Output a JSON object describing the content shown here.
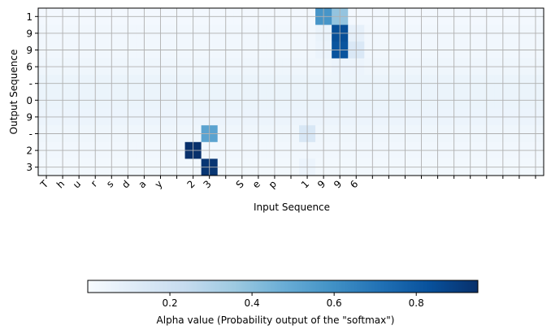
{
  "chart_data": {
    "type": "heatmap",
    "xlabel": "Input Sequence",
    "ylabel": "Output Sequence",
    "x_tick_labels": [
      "T",
      "h",
      "u",
      "r",
      "s",
      "d",
      "a",
      "y",
      "",
      "2",
      "3",
      "",
      "S",
      "e",
      "p",
      "",
      "1",
      "9",
      "9",
      "6",
      "",
      "",
      "",
      "",
      "",
      "",
      "",
      "",
      "",
      "",
      ""
    ],
    "y_tick_labels": [
      "1",
      "9",
      "9",
      "6",
      "-",
      "0",
      "9",
      "-",
      "2",
      "3"
    ],
    "grid": true,
    "background_value": 0.035,
    "cells": [
      {
        "row": 0,
        "col": 17,
        "value": 0.58
      },
      {
        "row": 0,
        "col": 18,
        "value": 0.38
      },
      {
        "row": 1,
        "col": 17,
        "value": 0.06
      },
      {
        "row": 1,
        "col": 18,
        "value": 0.84
      },
      {
        "row": 1,
        "col": 19,
        "value": 0.08
      },
      {
        "row": 2,
        "col": 17,
        "value": 0.05
      },
      {
        "row": 2,
        "col": 18,
        "value": 0.82
      },
      {
        "row": 2,
        "col": 19,
        "value": 0.14
      },
      {
        "row": 3,
        "col": 18,
        "value": 0.05
      },
      {
        "row": 3,
        "col": 19,
        "value": 0.05
      },
      {
        "row": 7,
        "col": 10,
        "value": 0.52
      },
      {
        "row": 7,
        "col": 16,
        "value": 0.15
      },
      {
        "row": 8,
        "col": 9,
        "value": 0.95
      },
      {
        "row": 9,
        "col": 10,
        "value": 0.93
      },
      {
        "row": 9,
        "col": 16,
        "value": 0.05
      }
    ],
    "row_shades": [
      0.02,
      0.03,
      0.03,
      0.04,
      0.055,
      0.055,
      0.05,
      0.04,
      0.03,
      0.025
    ],
    "colorbar": {
      "colormap": "Blues",
      "vmin": 0.0,
      "vmax": 0.95,
      "ticks": [
        0.2,
        0.4,
        0.6,
        0.8
      ],
      "tick_labels": [
        "0.2",
        "0.4",
        "0.6",
        "0.8"
      ],
      "label": "Alpha value (Probability output of the \"softmax\")"
    }
  }
}
